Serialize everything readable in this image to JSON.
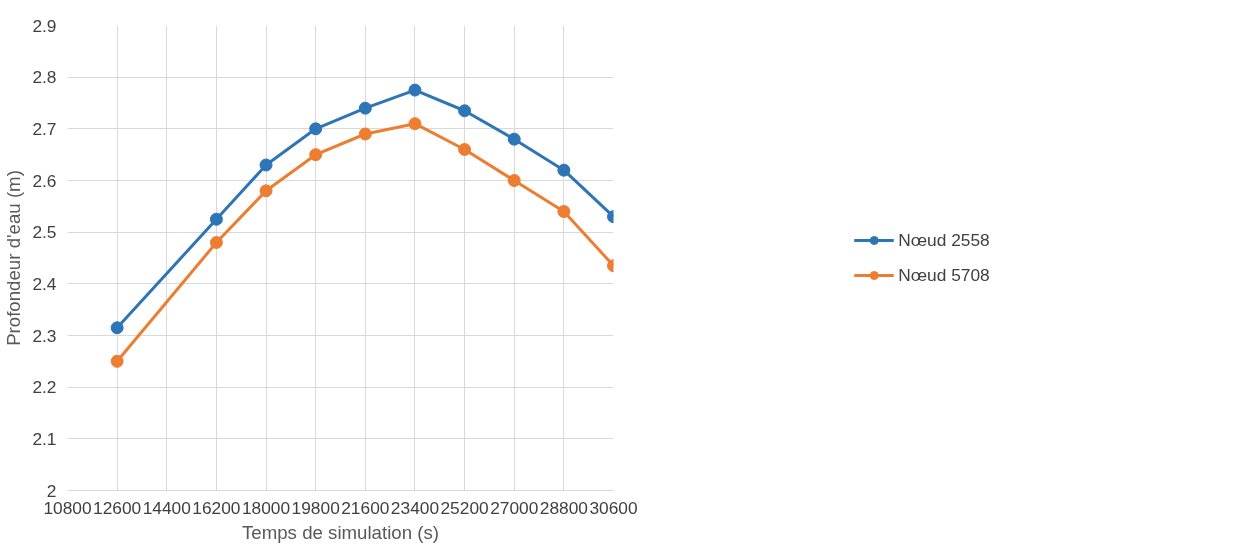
{
  "chart_data": {
    "type": "line",
    "xlabel": "Temps de simulation (s)",
    "ylabel": "Profondeur d'eau (m)",
    "x": [
      12600,
      16200,
      18000,
      19800,
      21600,
      23400,
      25200,
      27000,
      28800,
      30600
    ],
    "series": [
      {
        "name": "Nœud 2558",
        "color": "#2e75b6",
        "values": [
          2.315,
          2.525,
          2.63,
          2.7,
          2.74,
          2.775,
          2.735,
          2.68,
          2.62,
          2.53
        ]
      },
      {
        "name": "Nœud 5708",
        "color": "#ed7d31",
        "values": [
          2.25,
          2.48,
          2.58,
          2.65,
          2.69,
          2.71,
          2.66,
          2.6,
          2.54,
          2.435
        ]
      }
    ],
    "xlim": [
      10800,
      30600
    ],
    "xticks": [
      10800,
      12600,
      14400,
      16200,
      18000,
      19800,
      21600,
      23400,
      25200,
      27000,
      28800,
      30600
    ],
    "ylim": [
      2,
      2.9
    ],
    "yticks": [
      {
        "value": 2,
        "label": "2"
      },
      2.1,
      2.2,
      2.3,
      2.4,
      2.5,
      2.6,
      2.7,
      2.8,
      2.9
    ],
    "grid": true,
    "legend": "right",
    "marker": "circle",
    "line_style": "solid"
  }
}
